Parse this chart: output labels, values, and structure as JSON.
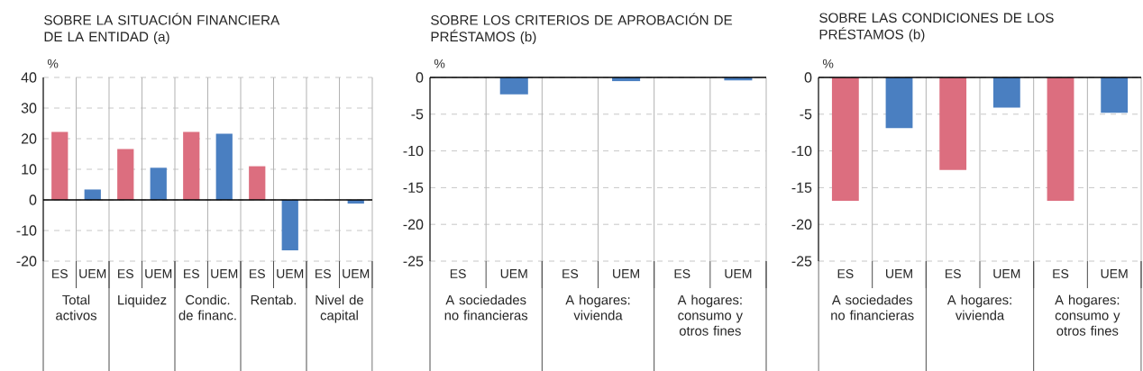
{
  "chart_data": [
    {
      "type": "bar",
      "title": "SOBRE LA SITUACIÓN FINANCIERA DE LA ENTIDAD (a)",
      "ylabel": "%",
      "categories": [
        "ES",
        "UEM",
        "ES",
        "UEM",
        "ES",
        "UEM",
        "ES",
        "UEM",
        "ES",
        "UEM"
      ],
      "values": [
        22.2,
        3.4,
        16.6,
        10.5,
        22.2,
        21.6,
        11,
        -16.5,
        0,
        -1.2
      ],
      "colors": [
        "#dc6e7f",
        "#4a7fc1",
        "#dc6e7f",
        "#4a7fc1",
        "#dc6e7f",
        "#4a7fc1",
        "#dc6e7f",
        "#4a7fc1",
        "#dc6e7f",
        "#4a7fc1"
      ],
      "ylim": [
        -20,
        40
      ],
      "yticks": [
        -20,
        -10,
        0,
        10,
        20,
        30,
        40
      ],
      "grid": "y",
      "annotations": [
        "Total activos",
        "Liquidez",
        "Condic. de financ.",
        "Rentab.",
        "Nivel de capital"
      ]
    },
    {
      "type": "bar",
      "title": "SOBRE LOS CRITERIOS DE APROBACIÓN DE PRÉSTAMOS (b)",
      "ylabel": "%",
      "categories": [
        "ES",
        "UEM",
        "ES",
        "UEM",
        "ES",
        "UEM"
      ],
      "values": [
        0,
        -2.3,
        0,
        -0.5,
        0,
        -0.4
      ],
      "colors": [
        "#dc6e7f",
        "#4a7fc1",
        "#dc6e7f",
        "#4a7fc1",
        "#dc6e7f",
        "#4a7fc1"
      ],
      "ylim": [
        -25,
        0
      ],
      "yticks": [
        -25,
        -20,
        -15,
        -10,
        -5,
        0
      ],
      "grid": "y",
      "annotations": [
        "A sociedades no financieras",
        "A hogares: vivienda",
        "A hogares: consumo y otros fines"
      ]
    },
    {
      "type": "bar",
      "title": "SOBRE LAS CONDICIONES DE LOS PRÉSTAMOS (b)",
      "ylabel": "%",
      "categories": [
        "ES",
        "UEM",
        "ES",
        "UEM",
        "ES",
        "UEM"
      ],
      "values": [
        -16.8,
        -6.9,
        -12.6,
        -4.1,
        -16.8,
        -4.8
      ],
      "colors": [
        "#dc6e7f",
        "#4a7fc1",
        "#dc6e7f",
        "#4a7fc1",
        "#dc6e7f",
        "#4a7fc1"
      ],
      "ylim": [
        -25,
        0
      ],
      "yticks": [
        -25,
        -20,
        -15,
        -10,
        -5,
        0
      ],
      "grid": "y",
      "annotations": [
        "A sociedades no financieras",
        "A hogares: vivienda",
        "A hogares: consumo y otros fines"
      ]
    }
  ]
}
